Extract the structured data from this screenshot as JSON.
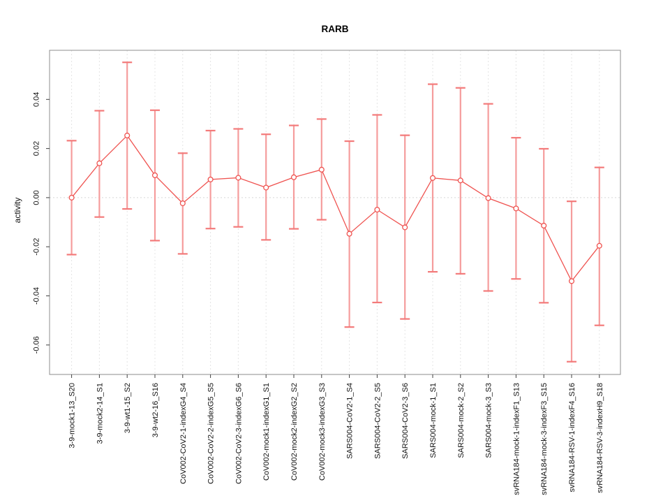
{
  "chart_data": {
    "type": "scatter",
    "title": "RARB",
    "xlabel": "",
    "ylabel": "activity",
    "legend": "none",
    "error_bars": true,
    "grid": {
      "vertical_dotted_per_category": true,
      "horizontal_zero_line_dotted": true
    },
    "tick_label_rotation_deg": 90,
    "ylim": [
      -0.072,
      0.06
    ],
    "yticks": [
      "0.04",
      "0.02",
      "0.00",
      "-0.02",
      "-0.04",
      "-0.06"
    ],
    "categories": [
      "3-9-mock1-13_S20",
      "3-9-mock2-14_S1",
      "3-9-wt1-15_S2",
      "3-9-wt2-16_S16",
      "CoV002-CoV2-1-indexG4_S4",
      "CoV002-CoV2-2-indexG5_S5",
      "CoV002-CoV2-3-indexG6_S6",
      "CoV002-mock1-indexG1_S1",
      "CoV002-mock2-indexG2_S2",
      "CoV002-mock3-indexG3_S3",
      "SARS004-CoV2-1_S4",
      "SARS004-CoV2-2_S5",
      "SARS004-CoV2-3_S6",
      "SARS004-mock-1_S1",
      "SARS004-mock-2_S2",
      "SARS004-mock-3_S3",
      "svRNA184-mock-1-indexF1_S13",
      "svRNA184-mock-3-indexF3_S15",
      "svRNA184-RSV-1-indexF4_S16",
      "svRNA184-RSV-3-indexH9_S18"
    ],
    "series": [
      {
        "name": "activity",
        "values": [
          0.0,
          0.014,
          0.0253,
          0.0091,
          -0.0023,
          0.0074,
          0.0081,
          0.0041,
          0.0083,
          0.0114,
          -0.0147,
          -0.0049,
          -0.0121,
          0.008,
          0.007,
          -0.0002,
          -0.0044,
          -0.0114,
          -0.034,
          -0.0196
        ],
        "ci_lower": [
          -0.0232,
          -0.0079,
          -0.0046,
          -0.0175,
          -0.0229,
          -0.0126,
          -0.0119,
          -0.0172,
          -0.0127,
          -0.009,
          -0.0527,
          -0.0427,
          -0.0494,
          -0.0302,
          -0.031,
          -0.038,
          -0.0331,
          -0.0428,
          -0.0668,
          -0.052
        ],
        "ci_upper": [
          0.0232,
          0.0354,
          0.0551,
          0.0356,
          0.0181,
          0.0273,
          0.028,
          0.0258,
          0.0294,
          0.032,
          0.023,
          0.0337,
          0.0254,
          0.0462,
          0.0447,
          0.0382,
          0.0244,
          0.0199,
          -0.0015,
          0.0123
        ]
      }
    ],
    "colors": {
      "point": "#ef5350",
      "line": "#ef5350",
      "error_bar": "#f59c9c",
      "error_cap": "#f37a7a",
      "grid": "#e4e4e4",
      "zero_line": "#d8d8d8",
      "box": "#8c8c8c",
      "tick": "#404040",
      "text": "#111111"
    }
  }
}
